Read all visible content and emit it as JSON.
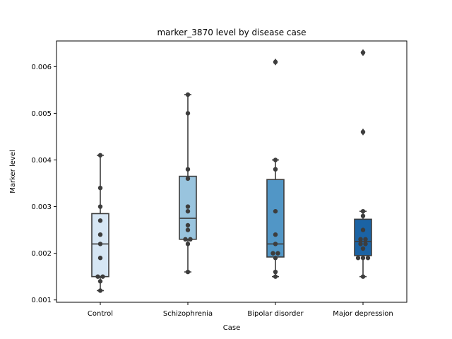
{
  "chart_data": {
    "type": "box",
    "title": "marker_3870 level by disease case",
    "xlabel": "Case",
    "ylabel": "Marker level",
    "ylim": [
      0.00095,
      0.00655
    ],
    "yticks": [
      0.001,
      0.002,
      0.003,
      0.004,
      0.005,
      0.006
    ],
    "ytick_labels": [
      "0.001",
      "0.002",
      "0.003",
      "0.004",
      "0.005",
      "0.006"
    ],
    "grid": false,
    "legend": "none",
    "categories": [
      "Control",
      "Schizophrenia",
      "Bipolar disorder",
      "Major depression"
    ],
    "boxes": [
      {
        "category": "Control",
        "color": "#d6e6f4",
        "whisker_low": 0.0012,
        "q1": 0.0015,
        "median": 0.0022,
        "q3": 0.00285,
        "whisker_high": 0.0041,
        "outliers": []
      },
      {
        "category": "Schizophrenia",
        "color": "#99c4de",
        "whisker_low": 0.0016,
        "q1": 0.0023,
        "median": 0.00275,
        "q3": 0.00365,
        "whisker_high": 0.0054,
        "outliers": []
      },
      {
        "category": "Bipolar disorder",
        "color": "#5196c6",
        "whisker_low": 0.0015,
        "q1": 0.00192,
        "median": 0.0022,
        "q3": 0.00358,
        "whisker_high": 0.004,
        "outliers": [
          0.0061
        ]
      },
      {
        "category": "Major depression",
        "color": "#1b63a4",
        "whisker_low": 0.0015,
        "q1": 0.00195,
        "median": 0.00225,
        "q3": 0.00273,
        "whisker_high": 0.0029,
        "outliers": [
          0.0046,
          0.0063
        ]
      }
    ],
    "points": [
      {
        "category": "Control",
        "values": [
          0.0041,
          0.0034,
          0.003,
          0.0027,
          0.0024,
          0.0022,
          0.0019,
          0.0015,
          0.0015,
          0.0014,
          0.0012
        ]
      },
      {
        "category": "Schizophrenia",
        "values": [
          0.0054,
          0.005,
          0.0038,
          0.0036,
          0.003,
          0.0029,
          0.0026,
          0.0025,
          0.0023,
          0.0023,
          0.0022,
          0.0016
        ]
      },
      {
        "category": "Bipolar disorder",
        "values": [
          0.0061,
          0.004,
          0.0038,
          0.0029,
          0.0024,
          0.0022,
          0.002,
          0.002,
          0.0019,
          0.0016,
          0.0015
        ]
      },
      {
        "category": "Major depression",
        "values": [
          0.0063,
          0.0046,
          0.0029,
          0.0028,
          0.0025,
          0.0023,
          0.0023,
          0.0022,
          0.0022,
          0.0021,
          0.0019,
          0.0019,
          0.0019,
          0.0015
        ]
      }
    ]
  }
}
